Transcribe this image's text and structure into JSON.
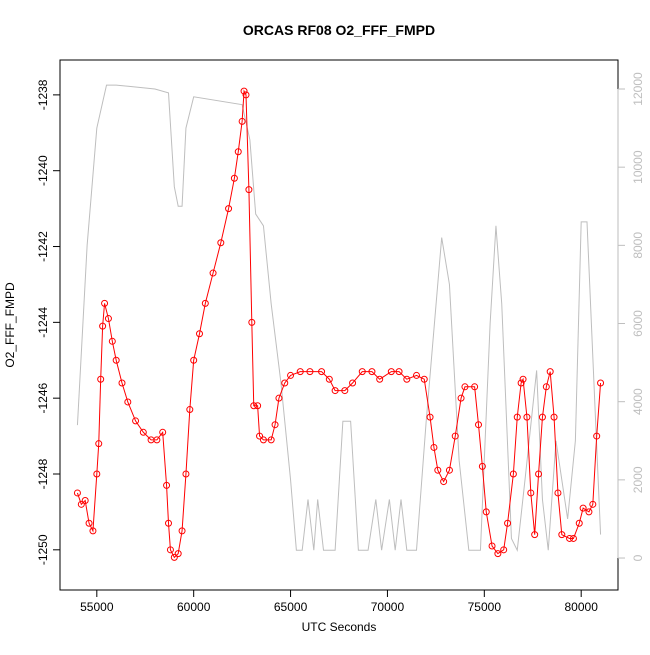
{
  "chart_data": {
    "type": "line",
    "title": "ORCAS RF08 O2_FFF_FMPD",
    "x_label": "UTC Seconds",
    "y_label": "O2_FFF_FMPD",
    "xlim": [
      53100,
      81900
    ],
    "xticks": [
      55000,
      60000,
      65000,
      70000,
      75000,
      80000
    ],
    "ylim": [
      -1251.06,
      -1237.08
    ],
    "yticks": [
      -1250,
      -1248,
      -1246,
      -1244,
      -1242,
      -1240,
      -1238
    ],
    "y2lim": [
      -818,
      12742
    ],
    "y2ticks": [
      0,
      2000,
      4000,
      6000,
      8000,
      10000,
      12000
    ],
    "series": [
      {
        "color": "#bebebe",
        "axis": "y2",
        "marker": "none",
        "x": [
          54000,
          54500,
          55000,
          55500,
          56000,
          58000,
          58700,
          59000,
          59200,
          59400,
          59600,
          60000,
          62500,
          62900,
          63200,
          63600,
          64000,
          64500,
          65000,
          65300,
          65600,
          65900,
          66200,
          66400,
          66700,
          67300,
          67700,
          68100,
          68500,
          69000,
          69400,
          69700,
          70100,
          70400,
          70700,
          71000,
          71500,
          72000,
          72800,
          73200,
          73700,
          74200,
          74800,
          75300,
          75600,
          75900,
          76400,
          76700,
          77100,
          77700,
          78000,
          78300,
          78700,
          79300,
          79700,
          80000,
          80300,
          80700,
          81000
        ],
        "values": [
          3400,
          8000,
          11000,
          12100,
          12100,
          12000,
          11900,
          9500,
          9000,
          9000,
          11000,
          11800,
          11600,
          10700,
          8800,
          8500,
          6500,
          4500,
          2000,
          200,
          200,
          1500,
          200,
          1500,
          200,
          200,
          3500,
          3500,
          200,
          200,
          1500,
          200,
          1500,
          200,
          1500,
          200,
          200,
          3500,
          8200,
          7000,
          2500,
          200,
          200,
          6000,
          8500,
          6500,
          500,
          200,
          2000,
          4800,
          1500,
          200,
          3000,
          1000,
          3000,
          8600,
          8600,
          4000,
          600
        ]
      },
      {
        "color": "#ff0000",
        "marker": "circle",
        "x": [
          54000,
          54200,
          54400,
          54600,
          54800,
          55000,
          55100,
          55200,
          55300,
          55400,
          55600,
          55800,
          56000,
          56300,
          56600,
          57000,
          57400,
          57800,
          58100,
          58400,
          58600,
          58700,
          58800,
          59000,
          59200,
          59400,
          59600,
          59800,
          60000,
          60300,
          60600,
          61000,
          61400,
          61800,
          62100,
          62300,
          62500,
          62600,
          62700,
          62850,
          63000,
          63100,
          63300,
          63400,
          63600,
          64000,
          64200,
          64400,
          64700,
          65000,
          65500,
          66000,
          66600,
          67000,
          67300,
          67800,
          68200,
          68700,
          69200,
          69600,
          70200,
          70600,
          71000,
          71500,
          71900,
          72200,
          72400,
          72600,
          72900,
          73200,
          73500,
          73800,
          74000,
          74500,
          74700,
          74900,
          75100,
          75400,
          75700,
          76000,
          76200,
          76500,
          76700,
          76900,
          77000,
          77200,
          77400,
          77600,
          77800,
          78000,
          78200,
          78400,
          78600,
          78800,
          79000,
          79400,
          79600,
          79900,
          80100,
          80400,
          80600,
          80800,
          81000
        ],
        "values": [
          -1248.5,
          -1248.8,
          -1248.7,
          -1249.3,
          -1249.5,
          -1248.0,
          -1247.2,
          -1245.5,
          -1244.1,
          -1243.5,
          -1243.9,
          -1244.5,
          -1245.0,
          -1245.6,
          -1246.1,
          -1246.6,
          -1246.9,
          -1247.1,
          -1247.1,
          -1246.9,
          -1248.3,
          -1249.3,
          -1250.0,
          -1250.2,
          -1250.1,
          -1249.5,
          -1248.0,
          -1246.3,
          -1245.0,
          -1244.3,
          -1243.5,
          -1242.7,
          -1241.9,
          -1241.0,
          -1240.2,
          -1239.5,
          -1238.7,
          -1237.9,
          -1238.0,
          -1240.5,
          -1244.0,
          -1246.2,
          -1246.2,
          -1247.0,
          -1247.1,
          -1247.1,
          -1246.7,
          -1246.0,
          -1245.6,
          -1245.4,
          -1245.3,
          -1245.3,
          -1245.3,
          -1245.5,
          -1245.8,
          -1245.8,
          -1245.6,
          -1245.3,
          -1245.3,
          -1245.5,
          -1245.3,
          -1245.3,
          -1245.5,
          -1245.4,
          -1245.5,
          -1246.5,
          -1247.3,
          -1247.9,
          -1248.2,
          -1247.9,
          -1247.0,
          -1246.0,
          -1245.7,
          -1245.7,
          -1246.7,
          -1247.8,
          -1249.0,
          -1249.9,
          -1250.1,
          -1250.0,
          -1249.3,
          -1248.0,
          -1246.5,
          -1245.6,
          -1245.5,
          -1246.5,
          -1248.5,
          -1249.6,
          -1248.0,
          -1246.5,
          -1245.7,
          -1245.3,
          -1246.5,
          -1248.5,
          -1249.6,
          -1249.7,
          -1249.7,
          -1249.3,
          -1248.9,
          -1249.0,
          -1248.8,
          -1247.0,
          -1245.6
        ]
      }
    ]
  }
}
